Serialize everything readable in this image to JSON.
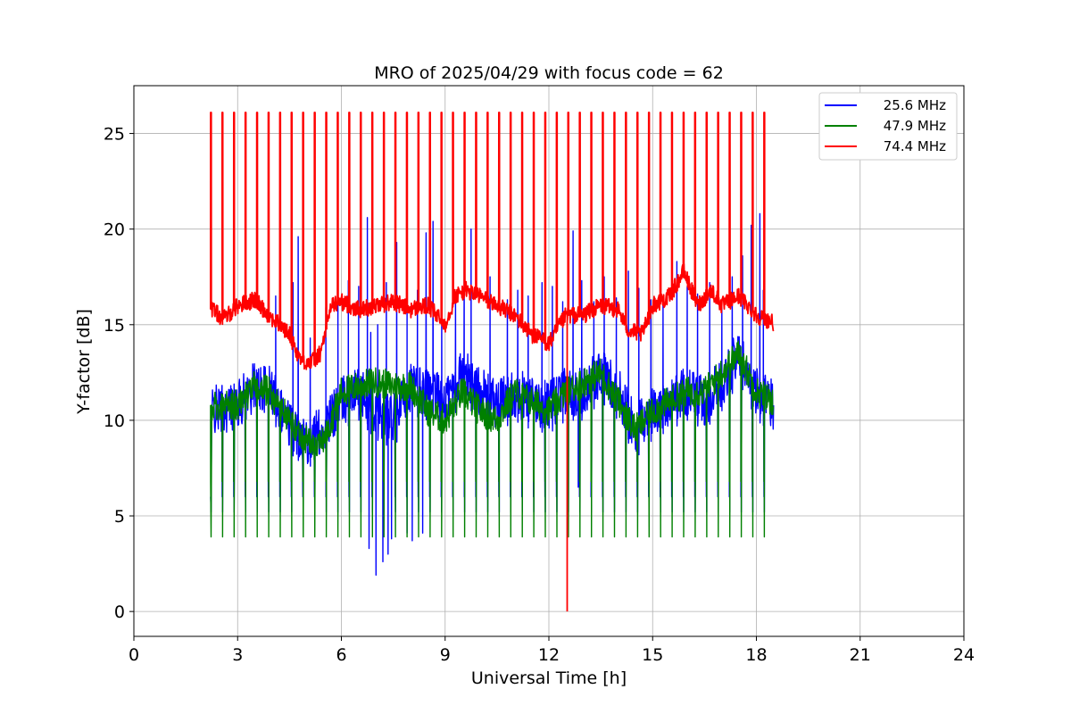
{
  "chart_data": {
    "type": "line",
    "title": "MRO of 2025/04/29 with focus code = 62",
    "xlabel": "Universal Time [h]",
    "ylabel": "Y-factor [dB]",
    "xlim": [
      0,
      24
    ],
    "ylim": [
      -1.3,
      27.5
    ],
    "xticks": [
      0,
      3,
      6,
      9,
      12,
      15,
      18,
      21,
      24
    ],
    "yticks": [
      0,
      5,
      10,
      15,
      20,
      25
    ],
    "grid": true,
    "legend_position": "top-right",
    "calibration": {
      "start_h": 2.22,
      "period_h": 0.3333,
      "count": 50,
      "end_h": 18.5,
      "high_dB": 26.1,
      "low_dB": 3.9,
      "anomaly": {
        "x": 12.53,
        "y": 0.0
      }
    },
    "series": [
      {
        "name": "25.6 MHz",
        "color": "#0000ff",
        "baseline": {
          "x": [
            2.25,
            3.0,
            3.5,
            4.0,
            4.5,
            5.0,
            5.5,
            6.0,
            6.5,
            7.0,
            7.5,
            8.0,
            8.5,
            9.0,
            9.5,
            10.0,
            10.5,
            11.0,
            11.5,
            12.0,
            12.5,
            13.0,
            13.5,
            14.0,
            14.5,
            15.0,
            15.5,
            16.0,
            16.5,
            17.0,
            17.5,
            18.0,
            18.5
          ],
          "y": [
            10.5,
            10.8,
            11.8,
            11.5,
            9.8,
            9.0,
            9.5,
            11.0,
            11.5,
            10.5,
            10.0,
            11.8,
            11.5,
            11.0,
            12.5,
            11.5,
            10.8,
            11.5,
            11.0,
            10.8,
            11.5,
            11.5,
            12.5,
            11.5,
            9.5,
            10.5,
            11.0,
            11.5,
            11.0,
            12.0,
            13.5,
            11.5,
            10.8
          ]
        },
        "spikes": {
          "x": [
            4.1,
            4.6,
            4.75,
            5.1,
            5.55,
            5.9,
            6.2,
            6.5,
            6.75,
            6.85,
            7.05,
            7.3,
            7.6,
            7.9,
            8.2,
            8.45,
            8.65,
            8.9,
            9.3,
            9.55,
            9.75,
            10.3,
            10.8,
            11.1,
            11.4,
            11.8,
            12.1,
            12.4,
            12.7,
            12.95,
            13.3,
            13.6,
            13.95,
            14.3,
            14.6,
            14.95,
            15.3,
            15.7,
            16.0,
            16.3,
            16.65,
            17.0,
            17.3,
            17.6,
            17.85,
            18.1,
            18.2
          ],
          "y": [
            16.5,
            17.2,
            19.6,
            14.3,
            15.9,
            17.2,
            17.3,
            17.0,
            20.6,
            14.6,
            15.0,
            17.2,
            19.3,
            18.3,
            16.8,
            19.8,
            20.4,
            17.0,
            16.5,
            18.4,
            20.0,
            17.5,
            16.3,
            16.8,
            16.5,
            17.2,
            17.0,
            16.2,
            19.9,
            17.3,
            16.2,
            17.5,
            16.4,
            17.8,
            16.9,
            16.3,
            16.0,
            18.3,
            17.0,
            16.6,
            17.2,
            16.1,
            17.5,
            18.6,
            20.2,
            20.8,
            16.8
          ]
        },
        "dips": {
          "x": [
            6.8,
            7.0,
            7.2,
            7.35,
            7.45,
            7.9,
            8.05,
            8.35,
            12.85
          ],
          "y": [
            3.3,
            1.9,
            2.6,
            3.0,
            3.8,
            4.1,
            3.7,
            4.1,
            6.5
          ]
        }
      },
      {
        "name": "47.9 MHz",
        "color": "#008000",
        "baseline": {
          "x": [
            2.25,
            3.0,
            3.5,
            3.9,
            4.3,
            4.7,
            5.0,
            5.3,
            5.6,
            6.0,
            6.5,
            7.0,
            7.5,
            8.0,
            8.5,
            9.0,
            9.5,
            10.0,
            10.5,
            11.0,
            11.5,
            12.0,
            12.5,
            13.0,
            13.5,
            14.0,
            14.5,
            15.0,
            15.5,
            16.0,
            16.5,
            17.0,
            17.5,
            18.0,
            18.5
          ],
          "y": [
            10.8,
            10.8,
            11.8,
            11.5,
            10.5,
            9.5,
            9.0,
            8.5,
            9.5,
            11.5,
            11.8,
            12.0,
            11.8,
            11.8,
            10.5,
            10.0,
            11.5,
            10.5,
            10.0,
            11.5,
            11.0,
            10.5,
            11.5,
            12.0,
            12.5,
            11.0,
            9.5,
            10.5,
            11.0,
            11.5,
            11.5,
            12.5,
            13.5,
            11.5,
            11.0
          ]
        }
      },
      {
        "name": "74.4 MHz",
        "color": "#ff0000",
        "baseline": {
          "x": [
            2.25,
            2.6,
            3.0,
            3.5,
            3.9,
            4.2,
            4.5,
            4.8,
            5.1,
            5.4,
            5.7,
            6.0,
            6.5,
            7.0,
            7.5,
            8.0,
            8.5,
            9.0,
            9.3,
            9.6,
            10.0,
            10.5,
            11.0,
            11.5,
            12.0,
            12.5,
            13.0,
            13.5,
            14.0,
            14.3,
            14.7,
            15.0,
            15.5,
            15.9,
            16.3,
            16.7,
            17.0,
            17.5,
            18.0,
            18.5
          ],
          "y": [
            15.8,
            15.3,
            16.0,
            16.3,
            15.5,
            15.0,
            14.5,
            13.2,
            13.0,
            13.5,
            16.0,
            16.2,
            15.8,
            16.0,
            16.2,
            15.8,
            16.0,
            15.0,
            16.5,
            16.8,
            16.5,
            16.0,
            15.5,
            14.5,
            14.0,
            15.5,
            15.5,
            16.0,
            15.8,
            14.7,
            14.5,
            16.0,
            16.5,
            17.8,
            16.0,
            16.8,
            16.0,
            16.5,
            15.5,
            15.1
          ]
        }
      }
    ]
  }
}
